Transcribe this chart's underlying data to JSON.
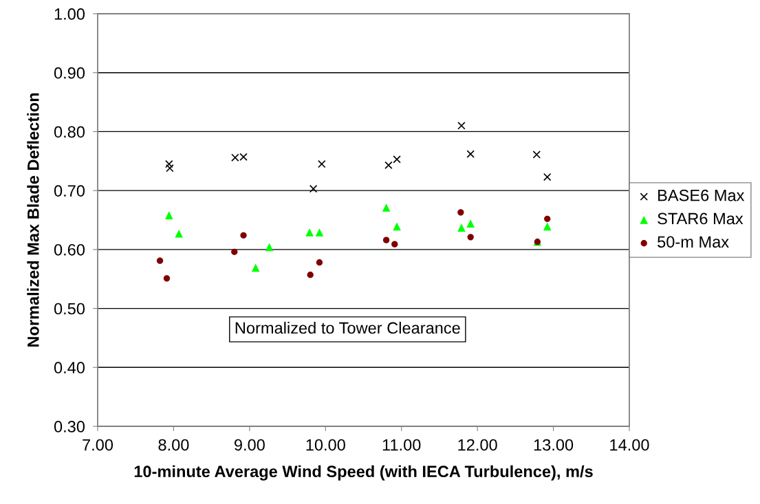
{
  "chart_data": {
    "type": "scatter",
    "xlabel": "10-minute Average Wind Speed (with IECA Turbulence), m/s",
    "ylabel": "Normalized Max Blade Deflection",
    "annotations": [
      "Normalized to Tower Clearance"
    ],
    "xlim": [
      7,
      14
    ],
    "ylim": [
      0.3,
      1.0
    ],
    "xticks": [
      {
        "value": 7,
        "label": "7.00"
      },
      {
        "value": 8,
        "label": "8.00"
      },
      {
        "value": 9,
        "label": "9.00"
      },
      {
        "value": 10,
        "label": "10.00"
      },
      {
        "value": 11,
        "label": "11.00"
      },
      {
        "value": 12,
        "label": "12.00"
      },
      {
        "value": 13,
        "label": "13.00"
      },
      {
        "value": 14,
        "label": "14.00"
      }
    ],
    "yticks": [
      {
        "value": 0.3,
        "label": "0.30"
      },
      {
        "value": 0.4,
        "label": "0.40"
      },
      {
        "value": 0.5,
        "label": "0.50"
      },
      {
        "value": 0.6,
        "label": "0.60"
      },
      {
        "value": 0.7,
        "label": "0.70"
      },
      {
        "value": 0.8,
        "label": "0.80"
      },
      {
        "value": 0.9,
        "label": "0.90"
      },
      {
        "value": 1.0,
        "label": "1.00"
      }
    ],
    "grid": "y",
    "legend": "right",
    "series": [
      {
        "name": "BASE6 Max",
        "color": "#000000",
        "marker": "cross",
        "x": [
          7.95,
          7.94,
          8.81,
          8.92,
          9.84,
          9.95,
          10.83,
          10.94,
          11.79,
          11.91,
          12.78,
          12.92
        ],
        "values": [
          0.738,
          0.745,
          0.756,
          0.757,
          0.703,
          0.745,
          0.743,
          0.753,
          0.81,
          0.762,
          0.761,
          0.723
        ]
      },
      {
        "name": "STAR6 Max",
        "color": "#00ff00",
        "marker": "triangle",
        "x": [
          7.94,
          8.07,
          9.08,
          9.26,
          9.79,
          9.92,
          10.8,
          10.94,
          11.79,
          11.91,
          12.79,
          12.92
        ],
        "values": [
          0.658,
          0.627,
          0.569,
          0.604,
          0.629,
          0.629,
          0.671,
          0.639,
          0.637,
          0.644,
          0.613,
          0.639
        ]
      },
      {
        "name": "50-m Max",
        "color": "#800000",
        "marker": "circle",
        "x": [
          7.82,
          7.91,
          8.8,
          8.92,
          9.8,
          9.92,
          10.8,
          10.91,
          11.78,
          11.91,
          12.79,
          12.92
        ],
        "values": [
          0.581,
          0.551,
          0.596,
          0.624,
          0.557,
          0.578,
          0.616,
          0.609,
          0.663,
          0.621,
          0.613,
          0.652
        ]
      }
    ]
  }
}
